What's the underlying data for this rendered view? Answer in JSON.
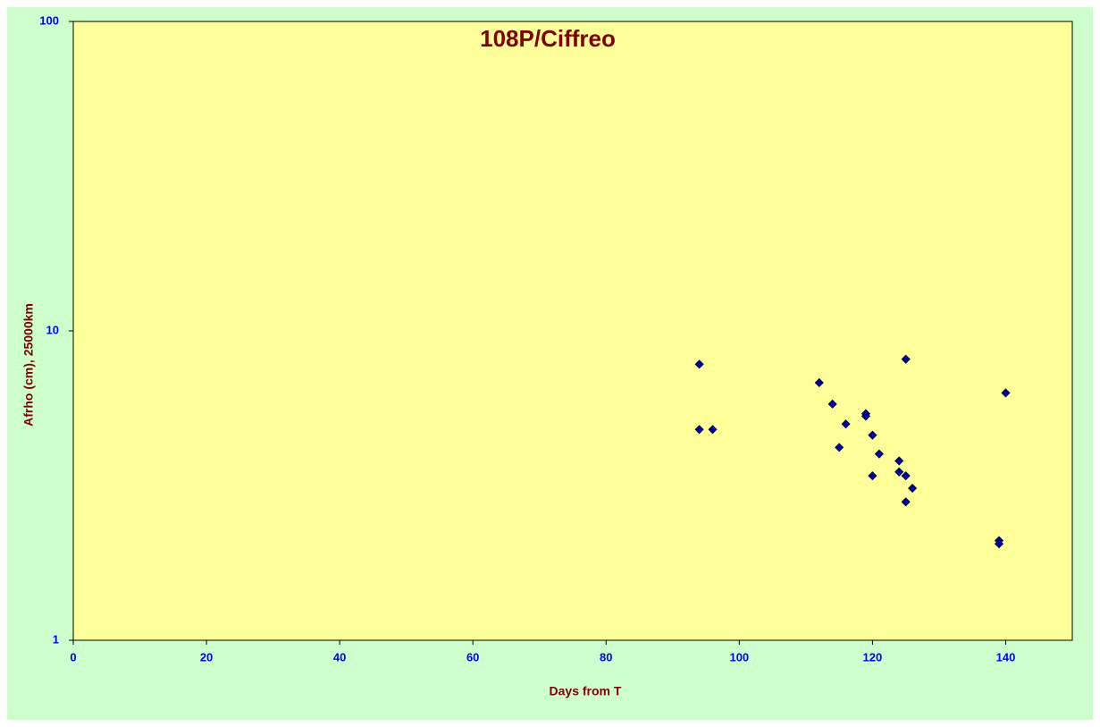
{
  "chart_data": {
    "type": "scatter",
    "title": "108P/Ciffreo",
    "x_label": "Days from  T",
    "y_label": "Afrho (cm), 25000km",
    "xlim": [
      0,
      150
    ],
    "xticks": [
      0,
      20,
      40,
      60,
      80,
      100,
      120,
      140
    ],
    "ylim": [
      1,
      100
    ],
    "yticks": [
      1,
      10,
      100
    ],
    "y_scale": "log",
    "grid": false,
    "series": [
      {
        "color": "#0000a0",
        "x": [
          94,
          94,
          96,
          112,
          114,
          115,
          116,
          119,
          119,
          120,
          120,
          121,
          124,
          124,
          125,
          125,
          125,
          126,
          139,
          139,
          140
        ],
        "values": [
          7.8,
          4.8,
          4.8,
          6.8,
          5.8,
          4.2,
          5.0,
          5.4,
          5.3,
          4.6,
          3.4,
          4.0,
          3.8,
          3.5,
          8.1,
          3.4,
          2.8,
          3.1,
          2.1,
          2.05,
          6.3
        ]
      }
    ]
  }
}
